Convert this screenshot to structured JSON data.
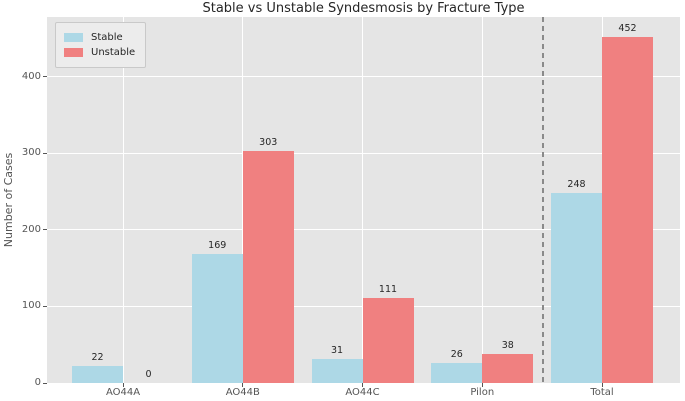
{
  "title": "Stable vs Unstable Syndesmosis by Fracture Type",
  "chart_data": {
    "type": "bar",
    "title": "Stable vs Unstable Syndesmosis by Fracture Type",
    "xlabel": "",
    "ylabel": "Number of Cases",
    "categories": [
      "AO44A",
      "AO44B",
      "AO44C",
      "Pilon",
      "Total"
    ],
    "series": [
      {
        "name": "Stable",
        "color": "#add8e6",
        "values": [
          22,
          169,
          31,
          26,
          248
        ]
      },
      {
        "name": "Unstable",
        "color": "#f08080",
        "values": [
          0,
          303,
          111,
          38,
          452
        ]
      }
    ],
    "bar_value_labels": true,
    "yticks": [
      0,
      100,
      200,
      300,
      400
    ],
    "ylim": [
      0,
      478
    ],
    "grid": true,
    "legend_position": "upper left",
    "separator_line": {
      "style": "dashed",
      "color": "#8a8a8a",
      "between": [
        "Pilon",
        "Total"
      ]
    },
    "colors": {
      "plot_background": "#e5e5e5",
      "figure_background": "#ffffff",
      "gridline": "#ffffff",
      "tick_text": "#555555",
      "title_text": "#262626"
    }
  }
}
